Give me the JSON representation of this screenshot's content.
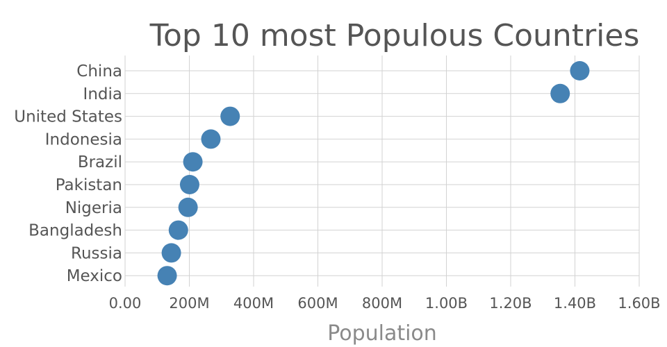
{
  "chart_data": {
    "type": "scatter",
    "title": "Top 10 most Populous Countries",
    "xlabel": "Population",
    "ylabel": "",
    "xlim": [
      0,
      1600000000
    ],
    "xticks": [
      0,
      200000000,
      400000000,
      600000000,
      800000000,
      1000000000,
      1200000000,
      1400000000,
      1600000000
    ],
    "xtick_labels": [
      "0.00",
      "200M",
      "400M",
      "600M",
      "800M",
      "1.00B",
      "1.20B",
      "1.40B",
      "1.60B"
    ],
    "categories": [
      "China",
      "India",
      "United States",
      "Indonesia",
      "Brazil",
      "Pakistan",
      "Nigeria",
      "Bangladesh",
      "Russia",
      "Mexico"
    ],
    "values": [
      1415000000,
      1354000000,
      327000000,
      267000000,
      211000000,
      201000000,
      196000000,
      166000000,
      144000000,
      131000000
    ],
    "grid": true,
    "marker_color": "#4682B4"
  }
}
